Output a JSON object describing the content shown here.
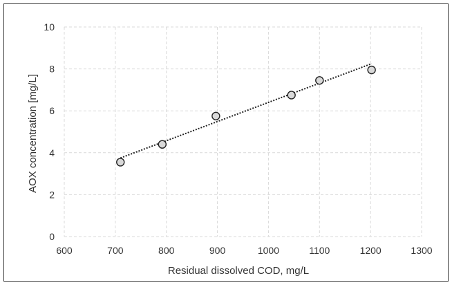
{
  "chart_data": {
    "type": "scatter",
    "title": "",
    "xlabel": "Residual dissolved COD, mg/L",
    "ylabel": "AOX concentration [mg/L]",
    "xlim": [
      600,
      1300
    ],
    "ylim": [
      0,
      10
    ],
    "xticks": [
      600,
      700,
      800,
      900,
      1000,
      1100,
      1200,
      1300
    ],
    "yticks": [
      0,
      2,
      4,
      6,
      8,
      10
    ],
    "grid": true,
    "legend": "none",
    "series": [
      {
        "marker": "open-circle",
        "color": "#d9d9d9",
        "x": [
          710,
          792,
          897,
          1045,
          1100,
          1202
        ],
        "y": [
          3.55,
          4.4,
          5.75,
          6.75,
          7.45,
          7.95
        ]
      }
    ],
    "trendline": {
      "style": "dotted-linear",
      "color": "#222222",
      "x": [
        710,
        1202
      ],
      "y": [
        3.75,
        8.25
      ]
    }
  }
}
